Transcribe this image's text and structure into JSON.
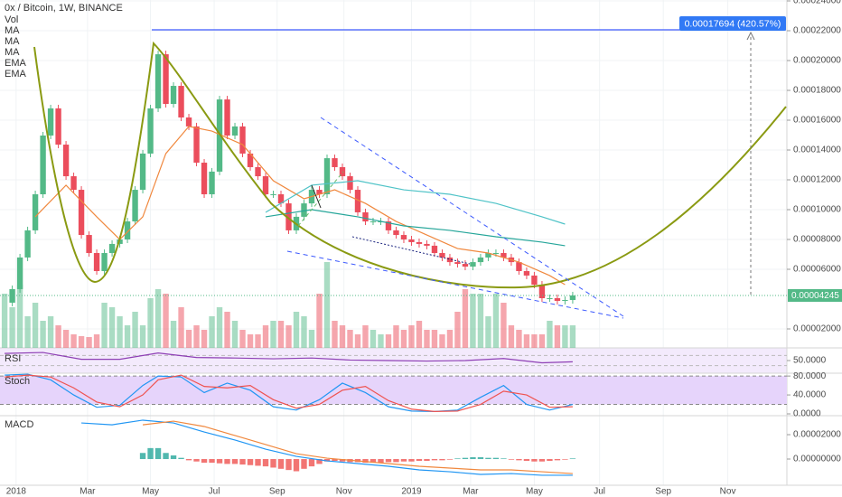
{
  "chart_data": {
    "type": "candlestick",
    "title": "0x / Bitcoin, 1W, BINANCE",
    "legend": [
      "Vol",
      "MA",
      "MA",
      "MA",
      "EMA",
      "EMA"
    ],
    "xlim": [
      -0.6,
      101.9
    ],
    "xticks": [
      {
        "value": 1.5,
        "label": "2018"
      },
      {
        "value": 10.8,
        "label": "Mar"
      },
      {
        "value": 19,
        "label": "May"
      },
      {
        "value": 27.3,
        "label": "Jul"
      },
      {
        "value": 35.5,
        "label": "Sep"
      },
      {
        "value": 44.2,
        "label": "Nov"
      },
      {
        "value": 53,
        "label": "2019"
      },
      {
        "value": 60.7,
        "label": "Mar"
      },
      {
        "value": 69,
        "label": "May"
      },
      {
        "value": 77.5,
        "label": "Jul"
      },
      {
        "value": 85.8,
        "label": "Sep"
      },
      {
        "value": 94.2,
        "label": "Nov"
      }
    ],
    "ylim": [
      7.27e-06,
      0.0002406
    ],
    "yticks": [
      {
        "value": 2e-05,
        "label": "0.00002000"
      },
      {
        "value": 6e-05,
        "label": "0.00006000"
      },
      {
        "value": 8e-05,
        "label": "0.00008000"
      },
      {
        "value": 0.0001,
        "label": "0.00010000"
      },
      {
        "value": 0.00012,
        "label": "0.00012000"
      },
      {
        "value": 0.00014,
        "label": "0.00014000"
      },
      {
        "value": 0.00016,
        "label": "0.00016000"
      },
      {
        "value": 0.00018,
        "label": "0.00018000"
      },
      {
        "value": 0.0002,
        "label": "0.00020000"
      },
      {
        "value": 0.00022,
        "label": "0.00022000"
      },
      {
        "value": 0.00024,
        "label": "0.00024000"
      }
    ],
    "up_color": "#53b987",
    "down_color": "#eb4d5c",
    "closes": [
      3.76e-05,
      4.67e-05,
      6.79e-05,
      8.61e-05,
      0.0001103,
      0.0001497,
      0.0001679,
      0.0001436,
      0.0001224,
      0.0001133,
      8.3e-05,
      7.09e-05,
      5.88e-05,
      7.09e-05,
      7.7e-05,
      8e-05,
      9.21e-05,
      0.0001133,
      0.0001376,
      0.0001679,
      0.0002042,
      0.0001709,
      0.000183,
      0.0001618,
      0.0001558,
      0.0001315,
      0.0001103,
      0.0001255,
      0.0001739,
      0.0001497,
      0.0001558,
      0.0001376,
      0.0001285,
      0.0001224,
      0.0001103,
      0.0001103,
      0.0001042,
      8.61e-05,
      9.52e-05,
      0.0001042,
      0.0001133,
      0.0001103,
      0.0001345,
      0.0001285,
      0.0001224,
      0.0001133,
      9.82e-05,
      9.21e-05,
      9.21e-05,
      9.21e-05,
      8.61e-05,
      8.3e-05,
      8e-05,
      7.82e-05,
      7.7e-05,
      7.58e-05,
      7.09e-05,
      6.79e-05,
      6.48e-05,
      6.36e-05,
      6.18e-05,
      6.48e-05,
      6.79e-05,
      7.09e-05,
      7.09e-05,
      6.79e-05,
      6.48e-05,
      5.88e-05,
      5.58e-05,
      4.97e-05,
      4.06e-05,
      4.06e-05,
      3.88e-05,
      3.94e-05,
      4.245e-05
    ],
    "volume": [
      60,
      45,
      70,
      35,
      50,
      30,
      35,
      25,
      20,
      15,
      13,
      12,
      15,
      50,
      45,
      35,
      25,
      40,
      25,
      55,
      65,
      60,
      30,
      45,
      20,
      25,
      20,
      35,
      45,
      40,
      30,
      20,
      15,
      15,
      25,
      30,
      30,
      25,
      40,
      35,
      20,
      60,
      95,
      30,
      25,
      20,
      15,
      25,
      20,
      15,
      15,
      25,
      20,
      25,
      30,
      20,
      20,
      15,
      20,
      40,
      65,
      60,
      60,
      35,
      60,
      50,
      25,
      20,
      15,
      15,
      15,
      30,
      25,
      25,
      25
    ],
    "last_price_label": "0.00004245",
    "measure_label": "0.00017694 (420.57%)",
    "ma_lines": [
      {
        "color": "#f0883e",
        "x": [
          4,
          8,
          12,
          15,
          18,
          21,
          24,
          27,
          31,
          35,
          39,
          43,
          47,
          51,
          55,
          59,
          63,
          67,
          71,
          73
        ],
        "values": [
          9.52e-05,
          0.0001164,
          9.52e-05,
          8e-05,
          9.52e-05,
          0.0001376,
          0.0001558,
          0.0001527,
          0.0001436,
          0.0001194,
          0.0001073,
          0.0001133,
          0.0001042,
          9.21e-05,
          8.3e-05,
          7.39e-05,
          7.09e-05,
          6.48e-05,
          5.58e-05,
          4.97e-05
        ]
      },
      {
        "color": "#4fc3c7",
        "x": [
          34,
          40,
          46,
          52,
          58,
          64,
          70,
          73
        ],
        "values": [
          9.82e-05,
          0.0001164,
          0.0001194,
          0.0001133,
          0.0001103,
          0.0001042,
          9.52e-05,
          9.03e-05
        ]
      },
      {
        "color": "#26a69a",
        "x": [
          34,
          40,
          46,
          52,
          58,
          64,
          70,
          73
        ],
        "values": [
          9.52e-05,
          0.0001,
          9.52e-05,
          8.91e-05,
          8.61e-05,
          8.18e-05,
          7.82e-05,
          7.58e-05
        ]
      }
    ],
    "rsi": {
      "label": "RSI",
      "ylim": [
        0,
        100
      ],
      "yticks": [
        {
          "value": 50,
          "label": "50.0000"
        }
      ],
      "band": [
        30,
        70
      ],
      "color": "#8e3fb5",
      "x": [
        0,
        5,
        10,
        15,
        20,
        25,
        30,
        35,
        40,
        45,
        50,
        55,
        60,
        65,
        70,
        74
      ],
      "values": [
        78,
        82,
        55,
        55,
        80,
        62,
        60,
        57,
        60,
        52,
        50,
        48,
        50,
        58,
        41,
        45
      ]
    },
    "stoch": {
      "label": "Stoch",
      "ylim": [
        0,
        86
      ],
      "yticks": [
        {
          "value": 80,
          "label": "80.0000"
        },
        {
          "value": 40,
          "label": "40.0000"
        },
        {
          "value": 0,
          "label": "0.0000"
        }
      ],
      "band": [
        20,
        80
      ],
      "x": [
        0,
        3,
        6,
        9,
        12,
        15,
        18,
        20,
        23,
        26,
        29,
        32,
        35,
        38,
        41,
        44,
        47,
        50,
        53,
        56,
        59,
        62,
        65,
        68,
        71,
        74
      ],
      "series": [
        {
          "color": "#2196f3",
          "values": [
            82,
            84,
            72,
            40,
            14,
            18,
            60,
            80,
            78,
            45,
            65,
            50,
            15,
            8,
            30,
            65,
            45,
            15,
            6,
            5,
            8,
            35,
            60,
            20,
            8,
            20
          ]
        },
        {
          "color": "#ef5350",
          "values": [
            78,
            82,
            78,
            55,
            25,
            15,
            40,
            72,
            82,
            58,
            55,
            60,
            30,
            12,
            20,
            50,
            58,
            28,
            10,
            5,
            6,
            20,
            48,
            40,
            14,
            15
          ]
        }
      ]
    },
    "macd": {
      "label": "MACD",
      "ylim": [
        -2e-05,
        3.41e-05
      ],
      "yticks": [
        {
          "value": 2e-05,
          "label": "0.00002000"
        },
        {
          "value": 0,
          "label": "0.00000000"
        }
      ],
      "lines": [
        {
          "color": "#2196f3",
          "x": [
            10,
            14,
            18,
            22,
            26,
            30,
            34,
            38,
            42,
            46,
            50,
            54,
            58,
            62,
            66,
            70,
            74
          ],
          "values": [
            2.96e-05,
            2.81e-05,
            3.19e-05,
            2.96e-05,
            2.22e-05,
            1.56e-05,
            8.1e-06,
            2.2e-06,
            -1.5e-06,
            -3.7e-06,
            -5.9e-06,
            -8.9e-06,
            -1.04e-05,
            -1.26e-05,
            -1.19e-05,
            -1.33e-05,
            -1.33e-05
          ]
        },
        {
          "color": "#f0883e",
          "x": [
            18,
            22,
            26,
            30,
            34,
            38,
            42,
            46,
            50,
            54,
            58,
            62,
            66,
            70,
            74
          ],
          "values": [
            2.81e-05,
            3.11e-05,
            2.67e-05,
            1.93e-05,
            1.19e-05,
            4.4e-06,
            7e-07,
            -1.5e-06,
            -3.7e-06,
            -5.9e-06,
            -7.4e-06,
            -8.9e-06,
            -8.9e-06,
            -1.04e-05,
            -1.19e-05
          ]
        }
      ],
      "hist_x0": 18,
      "hist": [
        5e-06,
        9e-06,
        9e-06,
        5e-06,
        3e-06,
        1e-06,
        -1e-06,
        -2e-06,
        -3e-06,
        -3e-06,
        -3.5e-06,
        -4e-06,
        -4e-06,
        -4.5e-06,
        -5e-06,
        -5.5e-06,
        -6e-06,
        -7e-06,
        -8e-06,
        -9e-06,
        -1e-05,
        -8e-06,
        -6e-06,
        -4e-06,
        -2e-06,
        -1.5e-06,
        -2e-06,
        -2.5e-06,
        -2.5e-06,
        -3e-06,
        -3e-06,
        -3e-06,
        -2.5e-06,
        -2.5e-06,
        -2e-06,
        -2e-06,
        -1.5e-06,
        -1.5e-06,
        -1e-06,
        -1e-06,
        -5e-07,
        5e-07,
        1e-06,
        1.5e-06,
        1.5e-06,
        1e-06,
        1e-06,
        5e-07,
        -5e-07,
        -1e-06,
        -1.5e-06,
        -2e-06,
        -2e-06,
        -1.5e-06,
        -1e-06,
        -5e-07,
        5e-07
      ]
    }
  }
}
